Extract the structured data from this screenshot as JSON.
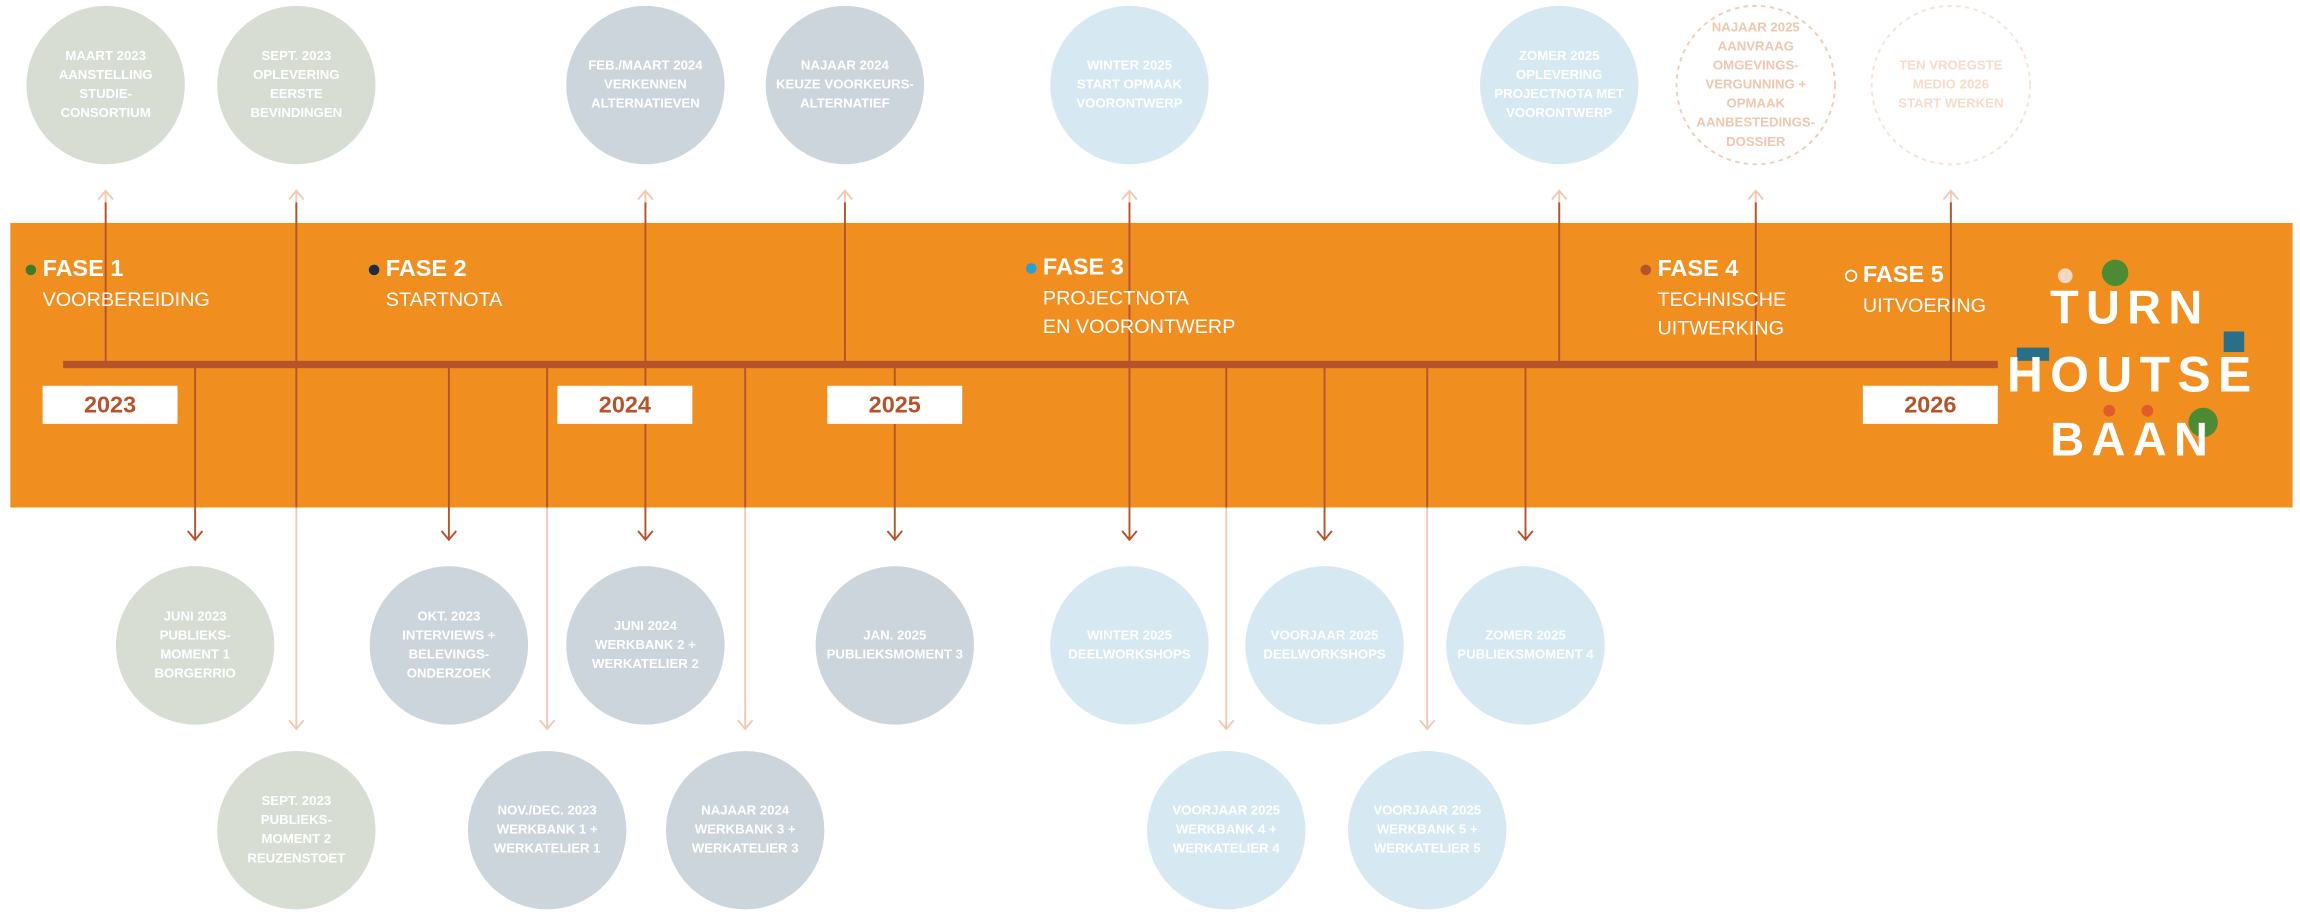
{
  "phases": [
    {
      "label": "FASE 1",
      "lines": [
        "VOORBEREIDING"
      ]
    },
    {
      "label": "FASE 2",
      "lines": [
        "STARTNOTA"
      ]
    },
    {
      "label": "FASE 3",
      "lines": [
        "PROJECTNOTA",
        "EN VOORONTWERP"
      ]
    },
    {
      "label": "FASE 4",
      "lines": [
        "TECHNISCHE",
        "UITWERKING"
      ]
    },
    {
      "label": "FASE 5",
      "lines": [
        "UITVOERING"
      ]
    }
  ],
  "years": [
    "2023",
    "2024",
    "2025",
    "2026"
  ],
  "milestones": {
    "top": [
      {
        "lines": [
          "MAART 2023",
          "AANSTELLING",
          "STUDIE-",
          "CONSORTIUM"
        ]
      },
      {
        "lines": [
          "SEPT. 2023",
          "OPLEVERING",
          "EERSTE",
          "BEVINDINGEN"
        ]
      },
      {
        "lines": [
          "FEB./MAART 2024",
          "VERKENNEN",
          "ALTERNATIEVEN"
        ]
      },
      {
        "lines": [
          "NAJAAR 2024",
          "KEUZE VOORKEURS-",
          "ALTERNATIEF"
        ]
      },
      {
        "lines": [
          "WINTER 2025",
          "START OPMAAK",
          "VOORONTWERP"
        ]
      },
      {
        "lines": [
          "ZOMER 2025",
          "OPLEVERING",
          "PROJECTNOTA MET",
          "VOORONTWERP"
        ]
      },
      {
        "lines": [
          "NAJAAR 2025",
          "AANVRAAG",
          "OMGEVINGS-",
          "VERGUNNING +",
          "OPMAAK",
          "AANBESTEDINGS-",
          "DOSSIER"
        ]
      },
      {
        "lines": [
          "TEN VROEGSTE",
          "MEDIO 2026",
          "START WERKEN"
        ]
      }
    ],
    "bottom": [
      {
        "lines": [
          "JUNI 2023",
          "PUBLIEKS-",
          "MOMENT 1",
          "BORGERRIO"
        ]
      },
      {
        "lines": [
          "OKT. 2023",
          "INTERVIEWS +",
          "BELEVINGS-",
          "ONDERZOEK"
        ]
      },
      {
        "lines": [
          "JUNI 2024",
          "WERKBANK 2 +",
          "WERKATELIER 2"
        ]
      },
      {
        "lines": [
          "JAN. 2025",
          "PUBLIEKSMOMENT 3"
        ]
      },
      {
        "lines": [
          "WINTER 2025",
          "DEELWORKSHOPS"
        ]
      },
      {
        "lines": [
          "VOORJAAR 2025",
          "DEELWORKSHOPS"
        ]
      },
      {
        "lines": [
          "ZOMER 2025",
          "PUBLIEKSMOMENT 4"
        ]
      },
      {
        "lines": [
          "SEPT. 2023",
          "PUBLIEKS-",
          "MOMENT 2",
          "REUZENSTOET"
        ]
      },
      {
        "lines": [
          "NOV./DEC. 2023",
          "WERKBANK 1 +",
          "WERKATELIER 1"
        ]
      },
      {
        "lines": [
          "NAJAAR 2024",
          "WERKBANK 3 +",
          "WERKATELIER 3"
        ]
      },
      {
        "lines": [
          "VOORJAAR 2025",
          "WERKBANK 4 +",
          "WERKATELIER 4"
        ]
      },
      {
        "lines": [
          "VOORJAAR 2025",
          "WERKBANK 5 +",
          "WERKATELIER 5"
        ]
      }
    ]
  },
  "logo": [
    "TURN",
    "HOUTSE",
    "BAAN"
  ]
}
